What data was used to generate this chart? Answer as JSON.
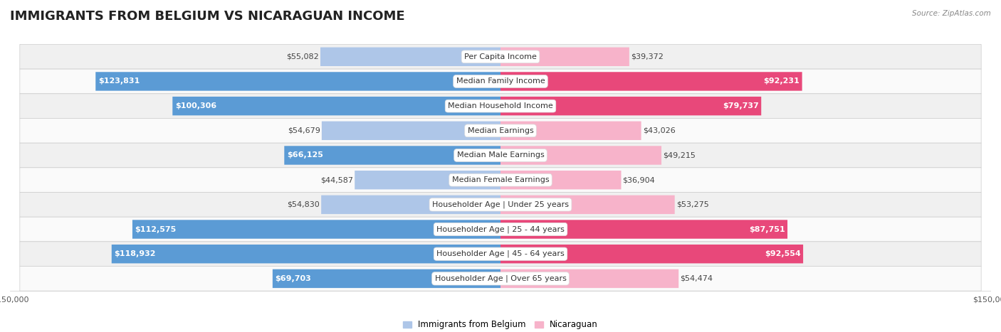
{
  "title": "IMMIGRANTS FROM BELGIUM VS NICARAGUAN INCOME",
  "source": "Source: ZipAtlas.com",
  "categories": [
    "Per Capita Income",
    "Median Family Income",
    "Median Household Income",
    "Median Earnings",
    "Median Male Earnings",
    "Median Female Earnings",
    "Householder Age | Under 25 years",
    "Householder Age | 25 - 44 years",
    "Householder Age | 45 - 64 years",
    "Householder Age | Over 65 years"
  ],
  "belgium_values": [
    55082,
    123831,
    100306,
    54679,
    66125,
    44587,
    54830,
    112575,
    118932,
    69703
  ],
  "nicaraguan_values": [
    39372,
    92231,
    79737,
    43026,
    49215,
    36904,
    53275,
    87751,
    92554,
    54474
  ],
  "belgium_color_light": "#aec6e8",
  "belgium_color_dark": "#5b9bd5",
  "nicaragua_color_light": "#f7b3ca",
  "nicaragua_color_dark": "#e8487a",
  "max_value": 150000,
  "background_row_even": "#f0f0f0",
  "background_row_odd": "#fafafa",
  "bar_height": 0.6,
  "legend_belgium": "Immigrants from Belgium",
  "legend_nicaragua": "Nicaraguan",
  "title_fontsize": 13,
  "label_fontsize": 8,
  "category_fontsize": 8,
  "axis_label_fontsize": 8,
  "dark_label_threshold": 60000,
  "nicaragua_dark_threshold": 60000
}
